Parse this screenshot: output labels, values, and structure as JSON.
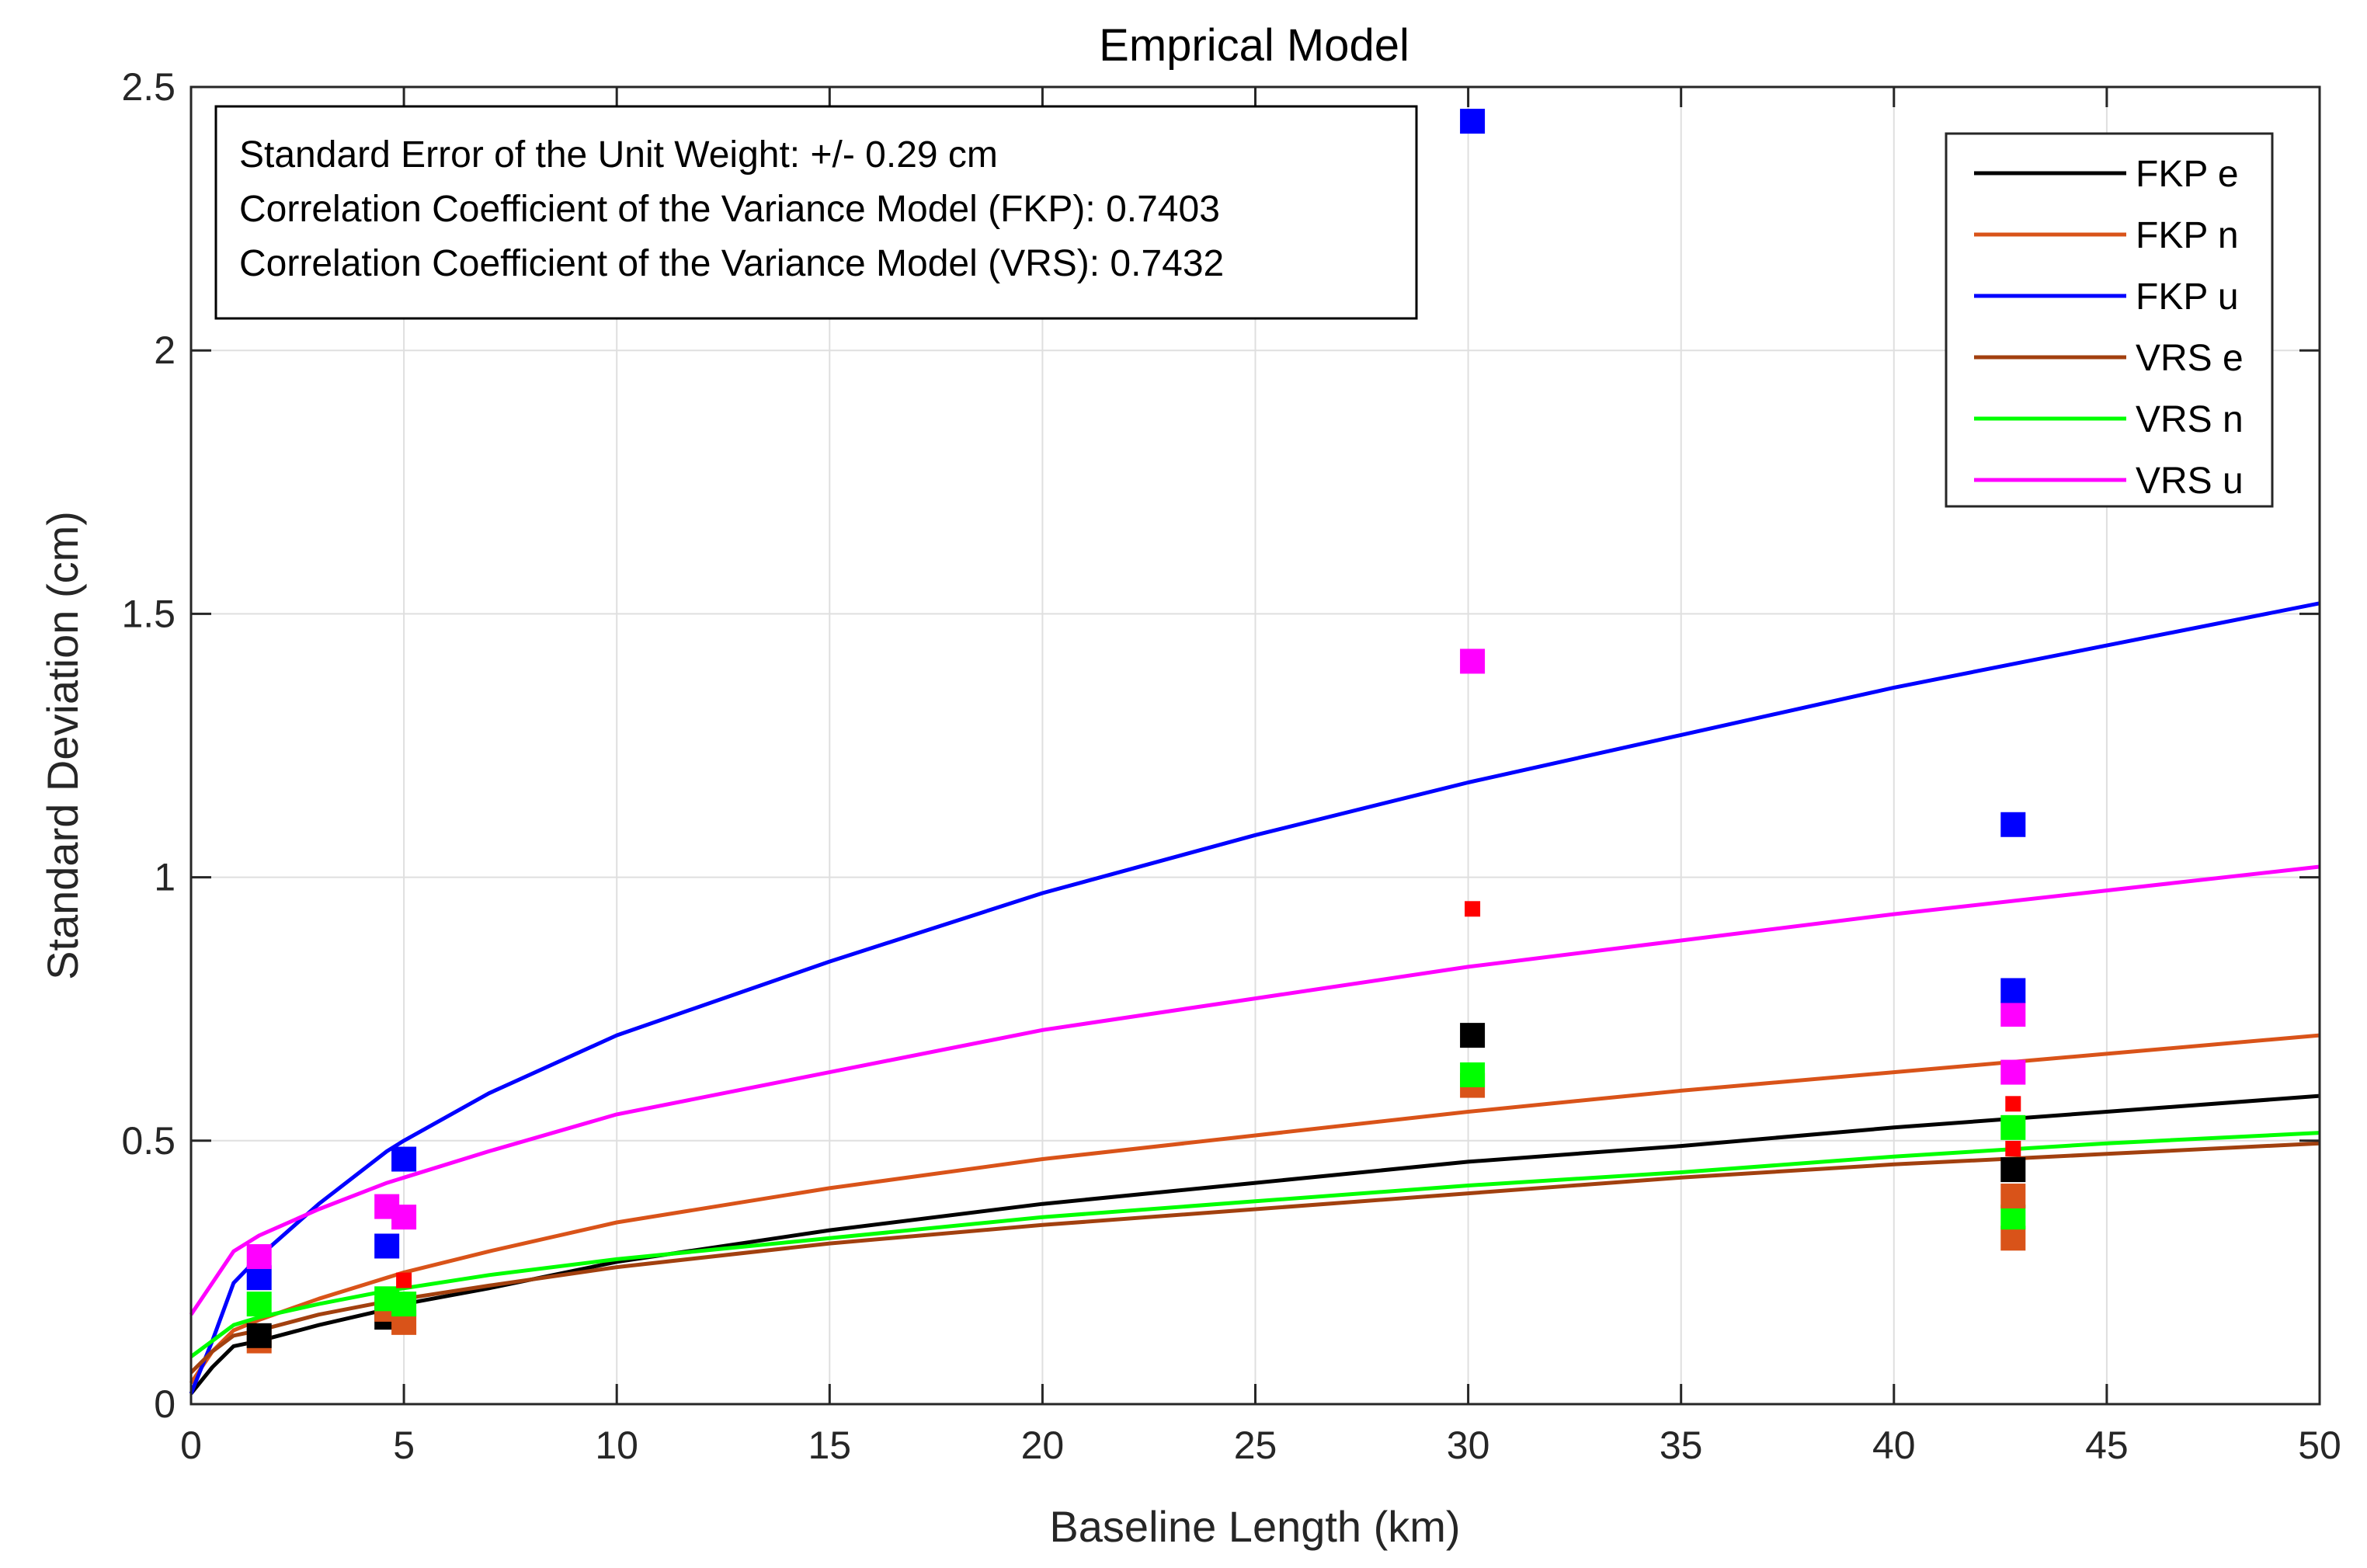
{
  "chart_data": {
    "type": "line",
    "title": "Emprical Model",
    "xlabel": "Baseline Length (km)",
    "ylabel": "Standard Deviation (cm)",
    "xlim": [
      0,
      50
    ],
    "ylim": [
      0,
      2.5
    ],
    "grid": true,
    "x_ticks": [
      0,
      5,
      10,
      15,
      20,
      25,
      30,
      35,
      40,
      45,
      50
    ],
    "y_ticks": [
      0,
      0.5,
      1,
      1.5,
      2,
      2.5
    ],
    "x_tick_labels": [
      "0",
      "5",
      "10",
      "15",
      "20",
      "25",
      "30",
      "35",
      "40",
      "45",
      "50"
    ],
    "y_tick_labels": [
      "0",
      "0.5",
      "1",
      "1.5",
      "2",
      "2.5"
    ],
    "annotation_lines": [
      "Standard Error of the Unit Weight: +/- 0.29 cm",
      "Correlation Coefficient of the Variance Model (FKP): 0.7403",
      "Correlation Coefficient of the Variance Model (VRS): 0.7432"
    ],
    "legend_position": "top-right",
    "series": [
      {
        "name": "FKP e",
        "color": "#000000",
        "x": [
          0,
          0.5,
          1,
          1.6,
          3,
          4.6,
          5,
          7,
          10,
          15,
          20,
          25,
          30,
          35,
          40,
          45,
          50
        ],
        "y": [
          0.02,
          0.07,
          0.11,
          0.12,
          0.15,
          0.18,
          0.19,
          0.22,
          0.27,
          0.33,
          0.38,
          0.42,
          0.46,
          0.49,
          0.525,
          0.555,
          0.585
        ]
      },
      {
        "name": "FKP n",
        "color": "#D95319",
        "x": [
          0,
          0.5,
          1,
          1.6,
          3,
          4.6,
          5,
          7,
          10,
          15,
          20,
          25,
          30,
          35,
          40,
          45,
          50
        ],
        "y": [
          0.04,
          0.1,
          0.14,
          0.16,
          0.2,
          0.24,
          0.25,
          0.29,
          0.345,
          0.41,
          0.465,
          0.51,
          0.555,
          0.595,
          0.63,
          0.665,
          0.7
        ]
      },
      {
        "name": "FKP u",
        "color": "#0000FF",
        "x": [
          0,
          0.5,
          1,
          1.6,
          3,
          4.6,
          5,
          7,
          10,
          15,
          20,
          25,
          30,
          35,
          40,
          45,
          50
        ],
        "y": [
          0.02,
          0.12,
          0.23,
          0.28,
          0.38,
          0.48,
          0.5,
          0.59,
          0.7,
          0.84,
          0.97,
          1.08,
          1.18,
          1.27,
          1.36,
          1.44,
          1.52
        ]
      },
      {
        "name": "VRS e",
        "color": "#A2400F",
        "x": [
          0,
          0.5,
          1,
          1.6,
          3,
          4.6,
          5,
          7,
          10,
          15,
          20,
          25,
          30,
          35,
          40,
          45,
          50
        ],
        "y": [
          0.06,
          0.1,
          0.13,
          0.14,
          0.17,
          0.195,
          0.2,
          0.225,
          0.26,
          0.305,
          0.34,
          0.37,
          0.4,
          0.43,
          0.455,
          0.475,
          0.495
        ]
      },
      {
        "name": "VRS n",
        "color": "#00FF00",
        "x": [
          0,
          0.5,
          1,
          1.6,
          3,
          4.6,
          5,
          7,
          10,
          15,
          20,
          25,
          30,
          35,
          40,
          45,
          50
        ],
        "y": [
          0.09,
          0.12,
          0.15,
          0.165,
          0.19,
          0.215,
          0.22,
          0.245,
          0.275,
          0.315,
          0.355,
          0.385,
          0.415,
          0.44,
          0.47,
          0.495,
          0.515
        ]
      },
      {
        "name": "VRS u",
        "color": "#FF00FF",
        "x": [
          0,
          0.5,
          1,
          1.6,
          3,
          4.6,
          5,
          7,
          10,
          15,
          20,
          25,
          30,
          35,
          40,
          45,
          50
        ],
        "y": [
          0.17,
          0.23,
          0.29,
          0.32,
          0.37,
          0.42,
          0.43,
          0.48,
          0.55,
          0.63,
          0.71,
          0.77,
          0.83,
          0.88,
          0.93,
          0.975,
          1.02
        ]
      }
    ],
    "points": [
      {
        "x": 1.6,
        "y": 0.12,
        "color": "#D95319",
        "size": "large"
      },
      {
        "x": 1.6,
        "y": 0.13,
        "color": "#000000",
        "size": "large"
      },
      {
        "x": 1.6,
        "y": 0.19,
        "color": "#00FF00",
        "size": "large"
      },
      {
        "x": 1.6,
        "y": 0.24,
        "color": "#0000FF",
        "size": "large"
      },
      {
        "x": 1.6,
        "y": 0.28,
        "color": "#FF00FF",
        "size": "large"
      },
      {
        "x": 4.6,
        "y": 0.165,
        "color": "#000000",
        "size": "large"
      },
      {
        "x": 4.6,
        "y": 0.18,
        "color": "#D95319",
        "size": "large"
      },
      {
        "x": 4.6,
        "y": 0.2,
        "color": "#00FF00",
        "size": "large"
      },
      {
        "x": 4.6,
        "y": 0.3,
        "color": "#0000FF",
        "size": "large"
      },
      {
        "x": 4.6,
        "y": 0.375,
        "color": "#FF00FF",
        "size": "large"
      },
      {
        "x": 5.0,
        "y": 0.155,
        "color": "#D95319",
        "size": "large"
      },
      {
        "x": 5.0,
        "y": 0.19,
        "color": "#00FF00",
        "size": "large"
      },
      {
        "x": 5.0,
        "y": 0.235,
        "color": "#FF0000",
        "size": "small"
      },
      {
        "x": 5.0,
        "y": 0.355,
        "color": "#FF00FF",
        "size": "large"
      },
      {
        "x": 5.0,
        "y": 0.465,
        "color": "#0000FF",
        "size": "large"
      },
      {
        "x": 30.1,
        "y": 0.605,
        "color": "#D95319",
        "size": "large"
      },
      {
        "x": 30.1,
        "y": 0.625,
        "color": "#00FF00",
        "size": "large"
      },
      {
        "x": 30.1,
        "y": 0.7,
        "color": "#000000",
        "size": "large"
      },
      {
        "x": 30.1,
        "y": 0.94,
        "color": "#FF0000",
        "size": "small"
      },
      {
        "x": 30.1,
        "y": 1.41,
        "color": "#FF00FF",
        "size": "large"
      },
      {
        "x": 30.1,
        "y": 2.435,
        "color": "#0000FF",
        "size": "large"
      },
      {
        "x": 42.8,
        "y": 0.315,
        "color": "#D95319",
        "size": "large"
      },
      {
        "x": 42.8,
        "y": 0.355,
        "color": "#00FF00",
        "size": "large"
      },
      {
        "x": 42.8,
        "y": 0.395,
        "color": "#D95319",
        "size": "large"
      },
      {
        "x": 42.8,
        "y": 0.445,
        "color": "#000000",
        "size": "large"
      },
      {
        "x": 42.8,
        "y": 0.485,
        "color": "#FF0000",
        "size": "small"
      },
      {
        "x": 42.8,
        "y": 0.525,
        "color": "#00FF00",
        "size": "large"
      },
      {
        "x": 42.8,
        "y": 0.57,
        "color": "#FF0000",
        "size": "small"
      },
      {
        "x": 42.8,
        "y": 0.63,
        "color": "#FF00FF",
        "size": "large"
      },
      {
        "x": 42.8,
        "y": 0.74,
        "color": "#FF00FF",
        "size": "large"
      },
      {
        "x": 42.8,
        "y": 0.785,
        "color": "#0000FF",
        "size": "large"
      },
      {
        "x": 42.8,
        "y": 1.1,
        "color": "#0000FF",
        "size": "large"
      }
    ]
  }
}
